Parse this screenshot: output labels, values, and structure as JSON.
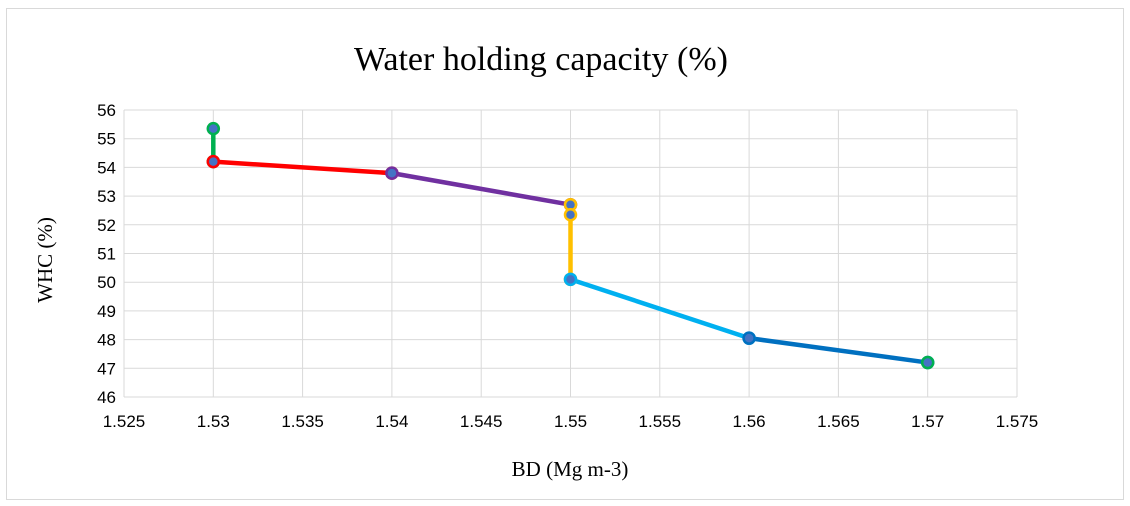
{
  "chart_data": {
    "type": "line",
    "title": "Water holding capacity (%)",
    "xlabel": "BD (Mg m-3)",
    "ylabel": "WHC (%)",
    "xlim": [
      1.525,
      1.575
    ],
    "ylim": [
      46,
      56
    ],
    "x_ticks": [
      "1.525",
      "1.53",
      "1.535",
      "1.54",
      "1.545",
      "1.55",
      "1.555",
      "1.56",
      "1.565",
      "1.57",
      "1.575"
    ],
    "y_ticks": [
      "46",
      "47",
      "48",
      "49",
      "50",
      "51",
      "52",
      "53",
      "54",
      "55",
      "56"
    ],
    "grid": true,
    "legend": "none",
    "series": [
      {
        "color": "#00b050",
        "marker_fill": "#4472c4",
        "marker_edge": "#00b050",
        "points": [
          [
            1.53,
            55.35
          ],
          [
            1.53,
            54.2
          ]
        ]
      },
      {
        "color": "#ff0000",
        "marker_fill": "#4472c4",
        "marker_edge": "#ff0000",
        "points": [
          [
            1.53,
            54.2
          ],
          [
            1.54,
            53.8
          ]
        ]
      },
      {
        "color": "#7030a0",
        "marker_fill": "#4472c4",
        "marker_edge": "#7030a0",
        "points": [
          [
            1.54,
            53.8
          ],
          [
            1.55,
            52.7
          ]
        ]
      },
      {
        "color": "#ffc000",
        "marker_fill": "#4472c4",
        "marker_edge": "#ffc000",
        "points": [
          [
            1.55,
            52.7
          ],
          [
            1.55,
            52.35
          ],
          [
            1.55,
            50.1
          ]
        ]
      },
      {
        "color": "#00b0f0",
        "marker_fill": "#4472c4",
        "marker_edge": "#00b0f0",
        "points": [
          [
            1.55,
            50.1
          ],
          [
            1.56,
            48.05
          ]
        ]
      },
      {
        "color": "#0070c0",
        "marker_fill": "#4472c4",
        "marker_edge": "#0070c0",
        "points": [
          [
            1.56,
            48.05
          ],
          [
            1.57,
            47.2
          ]
        ]
      },
      {
        "color": "#0070c0",
        "marker_fill": "#4472c4",
        "marker_edge": "#00b050",
        "points": [
          [
            1.57,
            47.2
          ]
        ]
      }
    ]
  }
}
